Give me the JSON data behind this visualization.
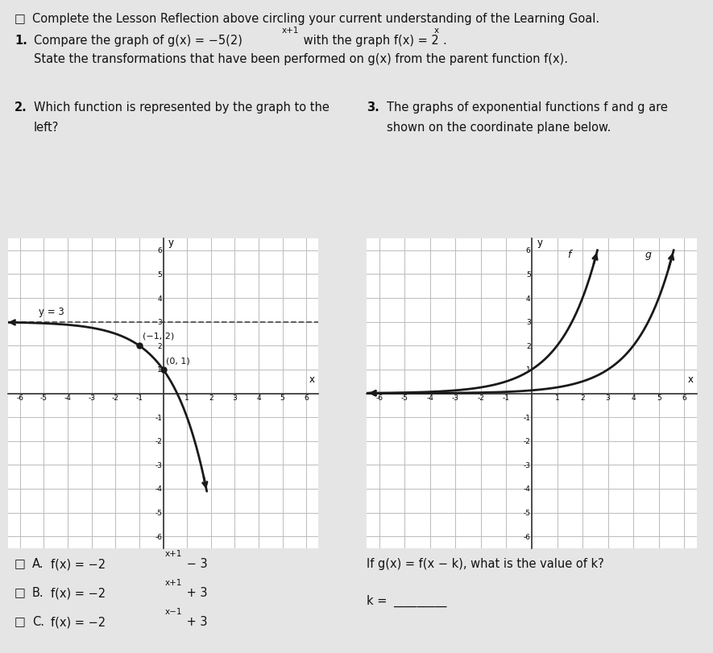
{
  "bg_color": "#e5e5e5",
  "white": "#ffffff",
  "text_color": "#111111",
  "grid_color": "#bbbbbb",
  "axis_color": "#333333",
  "curve_color": "#1a1a1a",
  "dashed_color": "#555555",
  "header_text": "Complete the Lesson Reflection above circling your current understanding of the Learning Goal.",
  "q1_line1a": "Compare the graph of g(x) = −5(2)",
  "q1_sup1": "x+1",
  "q1_line1b": " with the graph f(x) = 2",
  "q1_sup2": "x",
  "q1_line1c": ".",
  "q1_line2": "State the transformations that have been performed on g(x) from the parent function f(x).",
  "q2_text1": "Which function is represented by the graph to the",
  "q2_text2": "left?",
  "q3_text1": "The graphs of exponential functions f and g are",
  "q3_text2": "shown on the coordinate plane below.",
  "choiceA_main": "f(x) = −2",
  "choiceA_sup": "x+1",
  "choiceA_end": " − 3",
  "choiceB_main": "f(x) = −2",
  "choiceB_sup": "x+1",
  "choiceB_end": " + 3",
  "choiceC_main": "f(x) = −2",
  "choiceC_sup": "x−1",
  "choiceC_end": " + 3",
  "q3_eqn": "If g(x) = f(x − k), what is the value of k?",
  "q3_answer_label": "k = "
}
